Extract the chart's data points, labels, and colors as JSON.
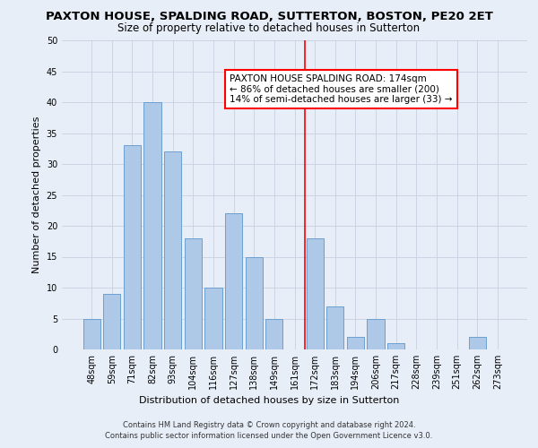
{
  "title": "PAXTON HOUSE, SPALDING ROAD, SUTTERTON, BOSTON, PE20 2ET",
  "subtitle": "Size of property relative to detached houses in Sutterton",
  "xlabel": "Distribution of detached houses by size in Sutterton",
  "ylabel": "Number of detached properties",
  "categories": [
    "48sqm",
    "59sqm",
    "71sqm",
    "82sqm",
    "93sqm",
    "104sqm",
    "116sqm",
    "127sqm",
    "138sqm",
    "149sqm",
    "161sqm",
    "172sqm",
    "183sqm",
    "194sqm",
    "206sqm",
    "217sqm",
    "228sqm",
    "239sqm",
    "251sqm",
    "262sqm",
    "273sqm"
  ],
  "values": [
    5,
    9,
    33,
    40,
    32,
    18,
    10,
    22,
    15,
    5,
    0,
    18,
    7,
    2,
    5,
    1,
    0,
    0,
    0,
    2,
    0
  ],
  "bar_color": "#aec9e8",
  "bar_edge_color": "#6ca0d0",
  "ylim": [
    0,
    50
  ],
  "yticks": [
    0,
    5,
    10,
    15,
    20,
    25,
    30,
    35,
    40,
    45,
    50
  ],
  "red_line_index": 11,
  "annotation_title": "PAXTON HOUSE SPALDING ROAD: 174sqm",
  "annotation_line1": "← 86% of detached houses are smaller (200)",
  "annotation_line2": "14% of semi-detached houses are larger (33) →",
  "footer_line1": "Contains HM Land Registry data © Crown copyright and database right 2024.",
  "footer_line2": "Contains public sector information licensed under the Open Government Licence v3.0.",
  "background_color": "#e8eef8",
  "grid_color": "#c8d0e0",
  "title_fontsize": 9.5,
  "subtitle_fontsize": 8.5,
  "axis_label_fontsize": 8,
  "tick_fontsize": 7,
  "annotation_fontsize": 7.5,
  "footer_fontsize": 6.0
}
